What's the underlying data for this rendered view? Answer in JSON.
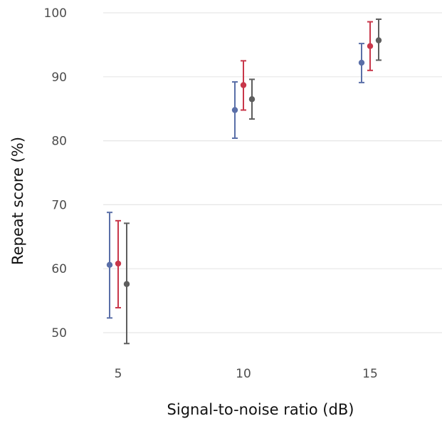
{
  "chart_data": {
    "type": "scatter",
    "xlabel": "Signal-to-noise ratio (dB)",
    "ylabel": "Repeat score (%)",
    "categories": [
      "5",
      "10",
      "15"
    ],
    "ylim": [
      47,
      101
    ],
    "yticks": [
      50,
      60,
      70,
      80,
      90,
      100
    ],
    "grid": true,
    "colors": [
      "#5a6fa8",
      "#c8374a",
      "#5e5e5e"
    ],
    "series": [
      {
        "values": [
          60.6,
          84.8,
          92.2
        ],
        "lower": [
          52.3,
          80.4,
          89.1
        ],
        "upper": [
          68.8,
          89.2,
          95.2
        ]
      },
      {
        "values": [
          60.8,
          88.7,
          94.8
        ],
        "lower": [
          53.9,
          84.8,
          91.0
        ],
        "upper": [
          67.5,
          92.5,
          98.6
        ]
      },
      {
        "values": [
          57.6,
          86.5,
          95.7
        ],
        "lower": [
          48.3,
          83.4,
          92.6
        ],
        "upper": [
          67.1,
          89.6,
          99.0
        ]
      }
    ]
  }
}
